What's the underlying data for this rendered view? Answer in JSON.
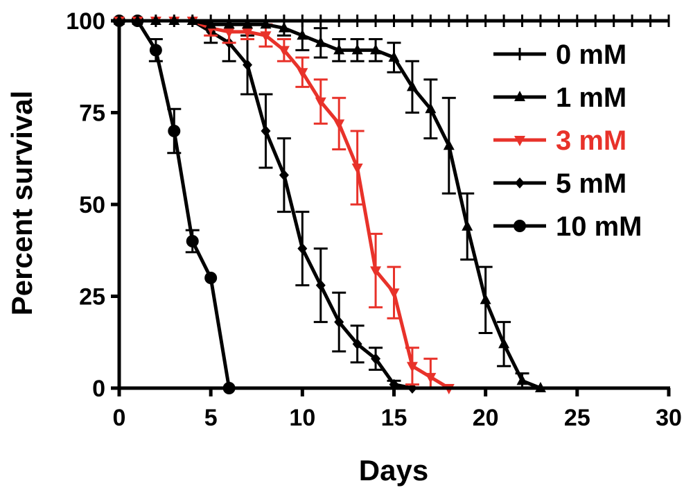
{
  "chart_data": {
    "type": "line",
    "xlabel": "Days",
    "ylabel": "Percent survival",
    "xlim": [
      0,
      30
    ],
    "ylim": [
      0,
      100
    ],
    "xticks": [
      "0",
      "5",
      "10",
      "15",
      "20",
      "25",
      "30"
    ],
    "yticks": [
      "0",
      "25",
      "50",
      "75",
      "100"
    ],
    "legend_position": "top-right",
    "grid": false,
    "series": [
      {
        "name": "0 mM",
        "color": "#000000",
        "marker": "tick",
        "x": [
          0,
          1,
          2,
          3,
          4,
          5,
          6,
          7,
          8,
          9,
          10,
          11,
          12,
          13,
          14,
          15,
          16,
          17,
          18,
          19,
          20,
          21,
          22,
          23,
          24,
          25,
          26,
          27,
          28,
          29,
          30
        ],
        "y": [
          100,
          100,
          100,
          100,
          100,
          100,
          100,
          100,
          100,
          100,
          100,
          100,
          100,
          100,
          100,
          100,
          100,
          100,
          100,
          100,
          100,
          100,
          100,
          100,
          100,
          100,
          100,
          100,
          100,
          100,
          100
        ],
        "err": [
          0,
          0,
          0,
          0,
          0,
          0,
          0,
          0,
          0,
          0,
          0,
          0,
          0,
          0,
          0,
          0,
          0,
          0,
          0,
          0,
          0,
          0,
          0,
          0,
          0,
          0,
          0,
          0,
          0,
          0,
          0
        ]
      },
      {
        "name": "1 mM",
        "color": "#000000",
        "marker": "triangle-up",
        "x": [
          0,
          1,
          2,
          3,
          4,
          5,
          6,
          7,
          8,
          9,
          10,
          11,
          12,
          13,
          14,
          15,
          16,
          17,
          18,
          19,
          20,
          21,
          22,
          23
        ],
        "y": [
          100,
          100,
          100,
          100,
          100,
          99,
          99,
          99,
          99,
          98,
          96,
          94,
          92,
          92,
          92,
          90,
          82,
          76,
          66,
          44,
          24,
          12,
          2,
          0
        ],
        "err": [
          0,
          0,
          0,
          0,
          0,
          0,
          0,
          0,
          0,
          2,
          4,
          4,
          3,
          3,
          3,
          4,
          7,
          8,
          13,
          9,
          9,
          6,
          2,
          0
        ]
      },
      {
        "name": "3 mM",
        "color": "#e8322a",
        "marker": "triangle-down",
        "x": [
          0,
          1,
          2,
          3,
          4,
          5,
          6,
          7,
          8,
          9,
          10,
          11,
          12,
          13,
          14,
          15,
          16,
          17,
          18
        ],
        "y": [
          100,
          100,
          100,
          100,
          100,
          98,
          97,
          97,
          96,
          92,
          86,
          78,
          72,
          60,
          32,
          26,
          6,
          3,
          0
        ],
        "err": [
          0,
          0,
          0,
          0,
          0,
          2,
          3,
          2,
          3,
          3,
          4,
          6,
          7,
          10,
          10,
          7,
          5,
          5,
          0
        ]
      },
      {
        "name": "5 mM",
        "color": "#000000",
        "marker": "diamond",
        "x": [
          0,
          1,
          2,
          3,
          4,
          5,
          6,
          7,
          8,
          9,
          10,
          11,
          12,
          13,
          14,
          15,
          16
        ],
        "y": [
          100,
          100,
          100,
          100,
          100,
          97,
          94,
          88,
          70,
          58,
          38,
          28,
          18,
          12,
          8,
          1,
          0
        ],
        "err": [
          0,
          0,
          0,
          0,
          0,
          3,
          5,
          8,
          10,
          10,
          10,
          10,
          8,
          5,
          3,
          1,
          0
        ]
      },
      {
        "name": "10 mM",
        "color": "#000000",
        "marker": "circle",
        "x": [
          0,
          1,
          2,
          3,
          4,
          5,
          6
        ],
        "y": [
          100,
          100,
          92,
          70,
          40,
          30,
          0
        ],
        "err": [
          0,
          0,
          3,
          6,
          3,
          0,
          0
        ]
      }
    ]
  }
}
